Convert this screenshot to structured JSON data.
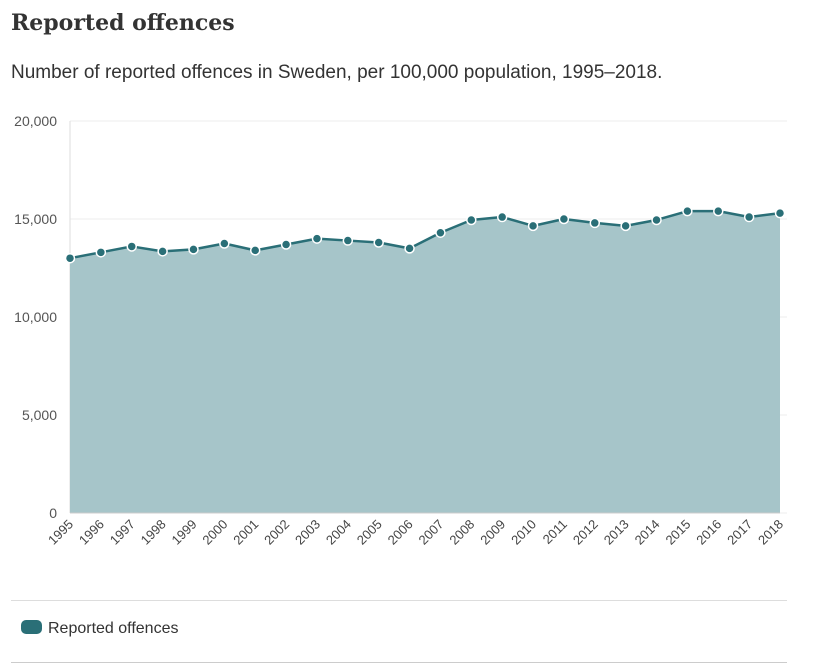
{
  "header": {
    "title": "Reported offences",
    "subtitle": "Number of reported offences in Sweden, per 100,000 population, 1995–2018."
  },
  "colors": {
    "line": "#2a6f77",
    "area": "#a6c5c9",
    "marker_stroke": "#ffffff",
    "gridline": "#eeeeee"
  },
  "legend": {
    "items": [
      {
        "label": "Reported offences",
        "color": "#2a6f77"
      }
    ]
  },
  "chart_data": {
    "type": "area",
    "title": "",
    "xlabel": "",
    "ylabel": "",
    "x": [
      "1995",
      "1996",
      "1997",
      "1998",
      "1999",
      "2000",
      "2001",
      "2002",
      "2003",
      "2004",
      "2005",
      "2006",
      "2007",
      "2008",
      "2009",
      "2010",
      "2011",
      "2012",
      "2013",
      "2014",
      "2015",
      "2016",
      "2017",
      "2018"
    ],
    "series": [
      {
        "name": "Reported offences",
        "values": [
          13000,
          13300,
          13600,
          13350,
          13450,
          13750,
          13400,
          13700,
          14000,
          13900,
          13800,
          13500,
          14300,
          14950,
          15100,
          14650,
          15000,
          14800,
          14650,
          14950,
          15400,
          15400,
          15100,
          15300
        ]
      }
    ],
    "ylim": [
      0,
      20000
    ],
    "yticks": [
      0,
      5000,
      10000,
      15000,
      20000
    ],
    "ytick_labels": [
      "0",
      "5,000",
      "10,000",
      "15,000",
      "20,000"
    ],
    "grid": true,
    "legend_position": "bottom-left"
  }
}
